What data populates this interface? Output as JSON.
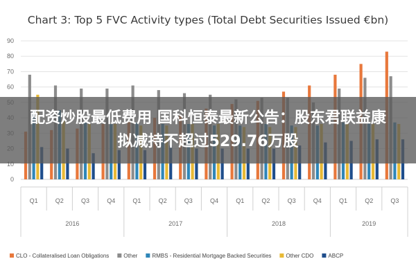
{
  "overlay": {
    "line1": "配资炒股最低费用 国科恒泰最新公告：股东君联益康",
    "line2": "拟减持不超过529.76万股"
  },
  "colors": {
    "clo": "#e8783c",
    "other": "#8c8c8c",
    "rmbs": "#2f86b8",
    "other_cdo": "#e8b935",
    "abcp": "#1f4e8c"
  },
  "chart_data": {
    "type": "bar",
    "title": "Chart 3: Top 5 FVC Activity types (Total Debt Securities Issued €bn)",
    "ylim": [
      0,
      90
    ],
    "yticks": [
      0,
      10,
      20,
      30,
      40,
      50,
      60,
      70,
      80,
      90
    ],
    "grid": true,
    "legend_position": "bottom",
    "categories": [
      "Q1",
      "Q2",
      "Q3",
      "Q4",
      "Q1",
      "Q2",
      "Q3",
      "Q4",
      "Q1",
      "Q2",
      "Q3",
      "Q4",
      "Q1",
      "Q2",
      "Q3"
    ],
    "year_groups": [
      {
        "label": "2016",
        "count": 4
      },
      {
        "label": "2017",
        "count": 4
      },
      {
        "label": "2018",
        "count": 4
      },
      {
        "label": "2019",
        "count": 3
      }
    ],
    "series": [
      {
        "name": "CLO - Collateralised Loan Obligations",
        "color_key": "clo",
        "values": [
          31,
          32,
          33,
          36,
          38,
          40,
          42,
          46,
          49,
          51,
          57,
          61,
          68,
          75,
          83
        ]
      },
      {
        "name": "Other",
        "color_key": "other",
        "values": [
          68,
          61,
          59,
          59,
          61,
          58,
          56,
          55,
          52,
          53,
          53,
          50,
          59,
          66,
          67
        ]
      },
      {
        "name": "RMBS - Residential Mortgage Backed Securities",
        "color_key": "rmbs",
        "values": [
          45,
          45,
          37,
          36,
          37,
          36,
          36,
          35,
          35,
          36,
          35,
          35,
          37,
          37,
          37
        ]
      },
      {
        "name": "Other CDO",
        "color_key": "other_cdo",
        "values": [
          55,
          38,
          36,
          36,
          35,
          35,
          36,
          36,
          34,
          34,
          34,
          36,
          36,
          36,
          36
        ]
      },
      {
        "name": "ABCP",
        "color_key": "abcp",
        "values": [
          21,
          20,
          17,
          19,
          19,
          22,
          20,
          20,
          20,
          20,
          22,
          24,
          25,
          26,
          26
        ]
      }
    ]
  }
}
